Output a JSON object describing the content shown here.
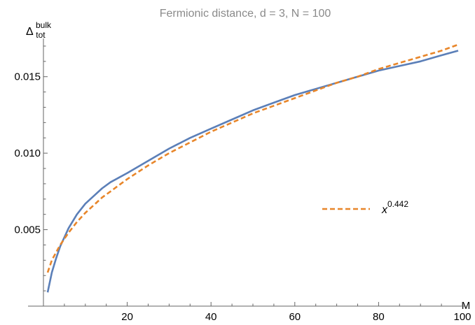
{
  "chart_data": {
    "type": "line",
    "title": "Fermionic distance, d = 3, N = 100",
    "ylabel": {
      "base": "Δ",
      "sup": "bulk",
      "sub": "tot"
    },
    "xlabel": "M",
    "xlim": [
      0,
      100
    ],
    "ylim": [
      0,
      0.0175
    ],
    "x_ticks": [
      20,
      40,
      60,
      80,
      100
    ],
    "x_tick_labels": [
      "20",
      "40",
      "60",
      "80",
      "100"
    ],
    "y_ticks": [
      0.005,
      0.01,
      0.015
    ],
    "y_tick_labels": [
      "0.005",
      "0.010",
      "0.015"
    ],
    "grid": false,
    "legend_position": "right",
    "series": [
      {
        "color": "#5b7fb8",
        "style": "solid",
        "x": [
          1,
          2,
          3,
          4,
          5,
          6,
          8,
          10,
          12,
          14,
          16,
          18,
          20,
          25,
          30,
          35,
          40,
          45,
          50,
          55,
          60,
          65,
          70,
          75,
          80,
          85,
          90,
          95,
          99
        ],
        "y": [
          0.0009,
          0.0022,
          0.0031,
          0.0039,
          0.0045,
          0.0051,
          0.006,
          0.0067,
          0.0072,
          0.0077,
          0.0081,
          0.0084,
          0.0087,
          0.0095,
          0.0103,
          0.011,
          0.0116,
          0.0122,
          0.0128,
          0.0133,
          0.0138,
          0.0142,
          0.0146,
          0.015,
          0.0154,
          0.0157,
          0.016,
          0.0164,
          0.0167
        ]
      },
      {
        "name": "x",
        "name_sup": "0.442",
        "color": "#e8862a",
        "style": "dashed",
        "x": [
          1,
          2,
          3,
          4,
          5,
          6,
          8,
          10,
          12,
          14,
          16,
          18,
          20,
          25,
          30,
          35,
          40,
          45,
          50,
          55,
          60,
          65,
          70,
          75,
          80,
          85,
          90,
          95,
          99
        ],
        "y": [
          0.0022,
          0.003,
          0.0035,
          0.004,
          0.0044,
          0.0048,
          0.0055,
          0.0061,
          0.0066,
          0.0071,
          0.0075,
          0.0079,
          0.0083,
          0.0092,
          0.01,
          0.0107,
          0.0114,
          0.012,
          0.0126,
          0.0131,
          0.0136,
          0.0141,
          0.0146,
          0.015,
          0.0155,
          0.0159,
          0.0163,
          0.0167,
          0.0171
        ]
      }
    ]
  }
}
